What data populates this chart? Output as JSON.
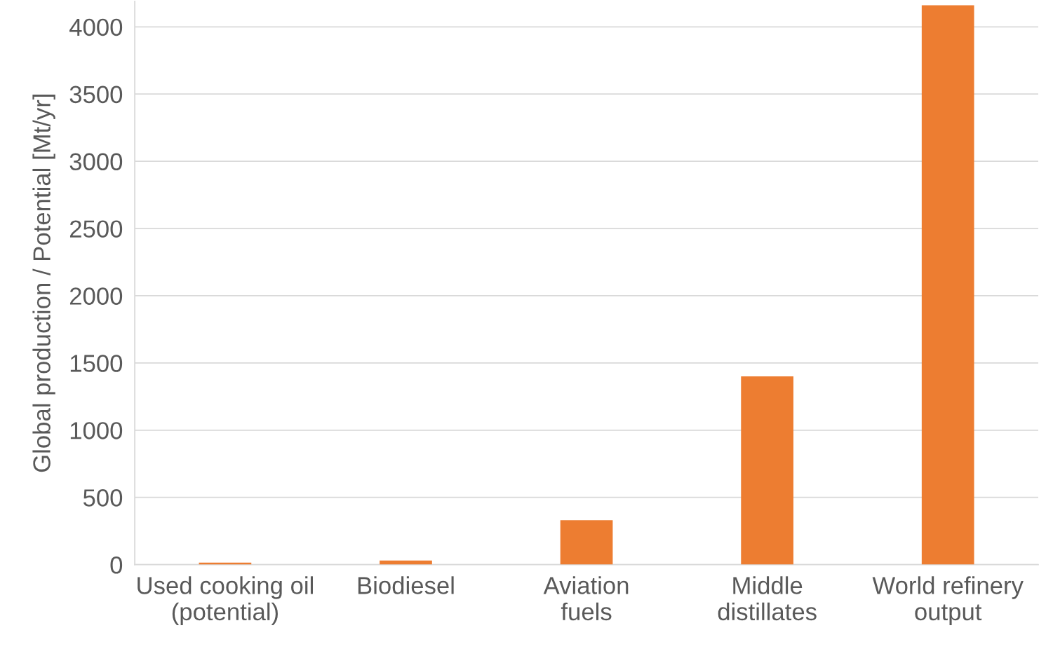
{
  "chart_data": {
    "type": "bar",
    "ylabel": "Global production / Potential [Mt/yr]",
    "categories": [
      "Used cooking oil\n(potential)",
      "Biodiesel",
      "Aviation\nfuels",
      "Middle\ndistillates",
      "World refinery\noutput"
    ],
    "values": [
      15,
      30,
      330,
      1400,
      4160
    ],
    "color": "#ed7d31",
    "ylim": [
      0,
      4190
    ],
    "yticks": [
      0,
      500,
      1000,
      1500,
      2000,
      2500,
      3000,
      3500,
      4000
    ],
    "grid": "y"
  }
}
